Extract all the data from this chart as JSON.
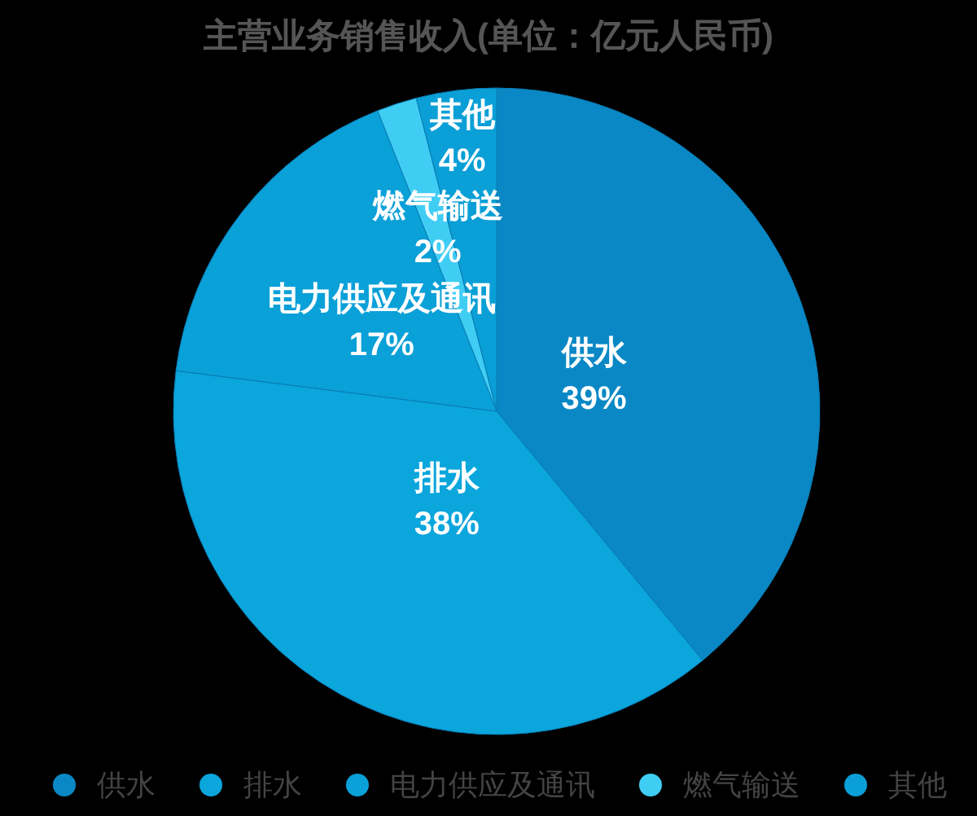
{
  "chart_data": {
    "type": "pie",
    "title": "主营业务销售收入(单位：亿元人民币)",
    "categories": [
      "供水",
      "排水",
      "电力供应及通讯",
      "燃气输送",
      "其他"
    ],
    "values": [
      39,
      38,
      17,
      2,
      4
    ],
    "colors": [
      "#0a88c5",
      "#0aa6dc",
      "#0aa0d8",
      "#3fcdf4",
      "#0a9fd6"
    ],
    "value_labels": [
      "39%",
      "38%",
      "17%",
      "2%",
      "4%"
    ],
    "legend": "bottom"
  }
}
